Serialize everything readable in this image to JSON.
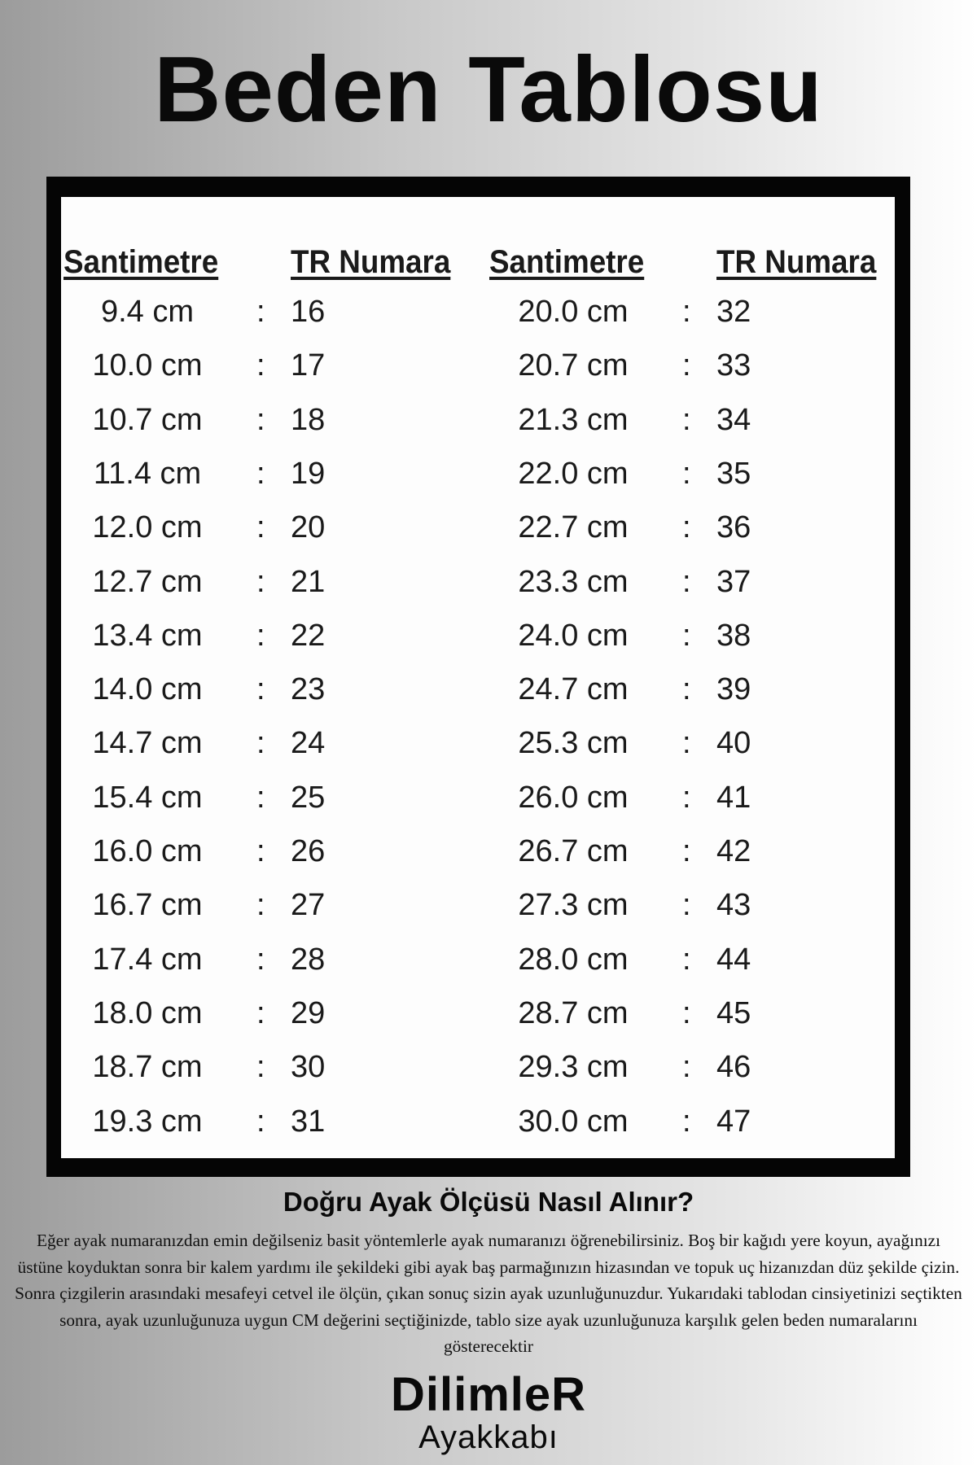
{
  "title": "Beden Tablosu",
  "table": {
    "headers": [
      "Santimetre",
      "TR Numara",
      "Santimetre",
      "TR Numara"
    ],
    "separator": ":",
    "left": [
      {
        "cm": "9.4 cm",
        "tr": "16"
      },
      {
        "cm": "10.0 cm",
        "tr": "17"
      },
      {
        "cm": "10.7 cm",
        "tr": "18"
      },
      {
        "cm": "11.4 cm",
        "tr": "19"
      },
      {
        "cm": "12.0 cm",
        "tr": "20"
      },
      {
        "cm": "12.7 cm",
        "tr": "21"
      },
      {
        "cm": "13.4 cm",
        "tr": "22"
      },
      {
        "cm": "14.0 cm",
        "tr": "23"
      },
      {
        "cm": "14.7 cm",
        "tr": "24"
      },
      {
        "cm": "15.4 cm",
        "tr": "25"
      },
      {
        "cm": "16.0 cm",
        "tr": "26"
      },
      {
        "cm": "16.7 cm",
        "tr": "27"
      },
      {
        "cm": "17.4 cm",
        "tr": "28"
      },
      {
        "cm": "18.0 cm",
        "tr": "29"
      },
      {
        "cm": "18.7 cm",
        "tr": "30"
      },
      {
        "cm": "19.3 cm",
        "tr": "31"
      }
    ],
    "right": [
      {
        "cm": "20.0 cm",
        "tr": "32"
      },
      {
        "cm": "20.7 cm",
        "tr": "33"
      },
      {
        "cm": "21.3 cm",
        "tr": "34"
      },
      {
        "cm": "22.0 cm",
        "tr": "35"
      },
      {
        "cm": "22.7 cm",
        "tr": "36"
      },
      {
        "cm": "23.3 cm",
        "tr": "37"
      },
      {
        "cm": "24.0 cm",
        "tr": "38"
      },
      {
        "cm": "24.7 cm",
        "tr": "39"
      },
      {
        "cm": "25.3 cm",
        "tr": "40"
      },
      {
        "cm": "26.0 cm",
        "tr": "41"
      },
      {
        "cm": "26.7 cm",
        "tr": "42"
      },
      {
        "cm": "27.3 cm",
        "tr": "43"
      },
      {
        "cm": "28.0 cm",
        "tr": "44"
      },
      {
        "cm": "28.7 cm",
        "tr": "45"
      },
      {
        "cm": "29.3 cm",
        "tr": "46"
      },
      {
        "cm": "30.0 cm",
        "tr": "47"
      }
    ]
  },
  "howto": {
    "heading": "Doğru Ayak Ölçüsü Nasıl Alınır?",
    "text": "Eğer ayak numaranızdan emin değilseniz basit yöntemlerle ayak numaranızı öğrenebilirsiniz. Boş bir kağıdı yere koyun, ayağınızı üstüne koyduktan sonra bir kalem yardımı ile şekildeki gibi ayak baş parmağınızın hizasından ve topuk uç hizanızdan düz şekilde çizin. Sonra çizgilerin arasındaki mesafeyi cetvel ile ölçün, çıkan sonuç sizin ayak uzunluğunuzdur. Yukarıdaki tablodan cinsiyetinizi seçtikten sonra, ayak uzunluğunuza uygun CM değerini seçtiğinizde, tablo size ayak uzunluğunuza karşılık gelen beden numaralarını gösterecektir"
  },
  "brand": {
    "name": "DilimleR",
    "sub": "Ayakkabı"
  }
}
